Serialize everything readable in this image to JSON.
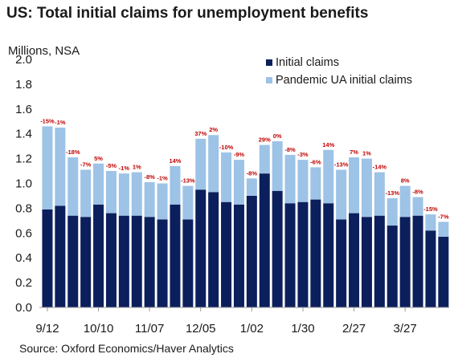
{
  "chart_data": {
    "type": "bar",
    "stacked": true,
    "title": "US: Total initial claims for unemployment benefits",
    "ylabel": "Millions, NSA",
    "ylim": [
      0,
      2.0
    ],
    "yticks": [
      "0.0",
      "0.2",
      "0.4",
      "0.6",
      "0.8",
      "1.0",
      "1.2",
      "1.4",
      "1.6",
      "1.8",
      "2.0"
    ],
    "x_tick_labels": [
      "9/12",
      "10/10",
      "11/07",
      "12/05",
      "1/02",
      "1/30",
      "2/27",
      "3/27"
    ],
    "x_tick_positions": [
      0,
      4,
      8,
      12,
      16,
      20,
      24,
      28
    ],
    "grid": false,
    "legend_position": "top-right",
    "source": "Source: Oxford Economics/Haver Analytics",
    "series": [
      {
        "name": "Initial claims",
        "color": "#0b1f5c",
        "values": [
          0.79,
          0.82,
          0.74,
          0.73,
          0.83,
          0.76,
          0.74,
          0.74,
          0.73,
          0.71,
          0.83,
          0.71,
          0.95,
          0.93,
          0.85,
          0.83,
          0.9,
          1.08,
          0.94,
          0.84,
          0.85,
          0.87,
          0.84,
          0.71,
          0.76,
          0.73,
          0.74,
          0.66,
          0.73,
          0.74,
          0.62,
          0.57
        ]
      },
      {
        "name": "Pandemic UA initial claims",
        "color": "#9dc3e6",
        "values": [
          0.67,
          0.63,
          0.47,
          0.38,
          0.33,
          0.34,
          0.34,
          0.35,
          0.28,
          0.29,
          0.31,
          0.27,
          0.41,
          0.46,
          0.4,
          0.36,
          0.14,
          0.23,
          0.4,
          0.39,
          0.34,
          0.26,
          0.43,
          0.4,
          0.45,
          0.47,
          0.35,
          0.22,
          0.25,
          0.15,
          0.13,
          0.12
        ]
      }
    ],
    "data_labels": [
      "-15%",
      "-1%",
      "-18%",
      "-7%",
      "5%",
      "-5%",
      "-1%",
      "1%",
      "-8%",
      "-1%",
      "14%",
      "-13%",
      "37%",
      "2%",
      "-10%",
      "-9%",
      "-8%",
      "29%",
      "0%",
      "-8%",
      "-3%",
      "-6%",
      "14%",
      "-13%",
      "7%",
      "1%",
      "-14%",
      "-13%",
      "8%",
      "-8%",
      "-15%",
      "-7%"
    ],
    "data_label_color": "#c00000"
  }
}
